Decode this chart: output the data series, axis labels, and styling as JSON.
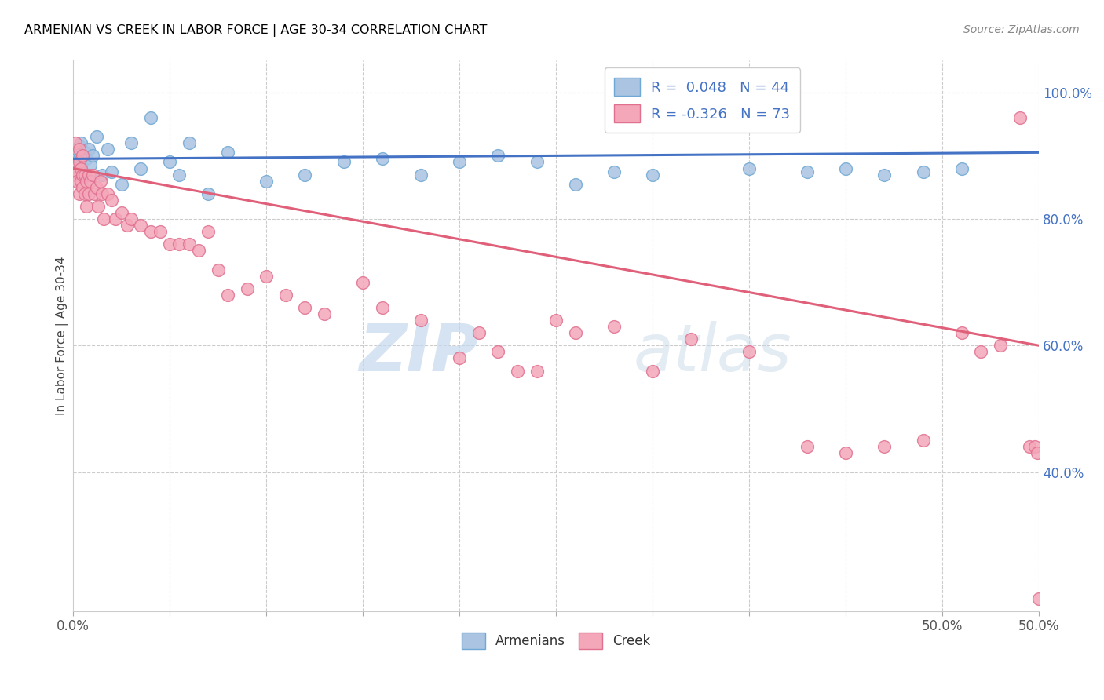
{
  "title": "ARMENIAN VS CREEK IN LABOR FORCE | AGE 30-34 CORRELATION CHART",
  "source": "Source: ZipAtlas.com",
  "ylabel": "In Labor Force | Age 30-34",
  "xlim": [
    0.0,
    0.5
  ],
  "ylim": [
    0.18,
    1.05
  ],
  "xticks": [
    0.0,
    0.05,
    0.1,
    0.15,
    0.2,
    0.25,
    0.3,
    0.35,
    0.4,
    0.45,
    0.5
  ],
  "xticklabels_show": {
    "0.0": "0.0%",
    "0.5": "50.0%"
  },
  "yticks_right": [
    0.4,
    0.6,
    0.8,
    1.0
  ],
  "yticklabels_right": [
    "40.0%",
    "60.0%",
    "80.0%",
    "100.0%"
  ],
  "armenian_color": "#aac4e2",
  "armenian_edge": "#6fa8d4",
  "creek_color": "#f4a7b9",
  "creek_edge": "#e07090",
  "line_armenian": "#4472c4",
  "line_creek": "#e0607a",
  "legend_r_armenian": "R =  0.048",
  "legend_n_armenian": "N = 44",
  "legend_r_creek": "R = -0.326",
  "legend_n_creek": "N = 73",
  "legend_color": "#4472c4",
  "watermark_zip": "ZIP",
  "watermark_atlas": "atlas",
  "armenian_x": [
    0.001,
    0.002,
    0.002,
    0.003,
    0.003,
    0.004,
    0.004,
    0.005,
    0.005,
    0.006,
    0.007,
    0.008,
    0.009,
    0.01,
    0.012,
    0.015,
    0.018,
    0.02,
    0.025,
    0.03,
    0.035,
    0.04,
    0.05,
    0.055,
    0.06,
    0.07,
    0.08,
    0.1,
    0.12,
    0.14,
    0.16,
    0.18,
    0.2,
    0.22,
    0.24,
    0.26,
    0.28,
    0.3,
    0.35,
    0.38,
    0.4,
    0.42,
    0.44,
    0.46
  ],
  "armenian_y": [
    0.905,
    0.91,
    0.875,
    0.915,
    0.895,
    0.885,
    0.92,
    0.9,
    0.87,
    0.905,
    0.895,
    0.91,
    0.885,
    0.9,
    0.93,
    0.87,
    0.91,
    0.875,
    0.855,
    0.92,
    0.88,
    0.96,
    0.89,
    0.87,
    0.92,
    0.84,
    0.905,
    0.86,
    0.87,
    0.89,
    0.895,
    0.87,
    0.89,
    0.9,
    0.89,
    0.855,
    0.875,
    0.87,
    0.88,
    0.875,
    0.88,
    0.87,
    0.875,
    0.88
  ],
  "creek_x": [
    0.001,
    0.001,
    0.002,
    0.002,
    0.003,
    0.003,
    0.003,
    0.004,
    0.004,
    0.005,
    0.005,
    0.005,
    0.006,
    0.006,
    0.007,
    0.007,
    0.008,
    0.008,
    0.009,
    0.01,
    0.011,
    0.012,
    0.013,
    0.014,
    0.015,
    0.016,
    0.018,
    0.02,
    0.022,
    0.025,
    0.028,
    0.03,
    0.035,
    0.04,
    0.045,
    0.05,
    0.055,
    0.06,
    0.065,
    0.07,
    0.075,
    0.08,
    0.09,
    0.1,
    0.11,
    0.12,
    0.13,
    0.15,
    0.16,
    0.18,
    0.2,
    0.21,
    0.22,
    0.23,
    0.24,
    0.25,
    0.26,
    0.28,
    0.3,
    0.32,
    0.35,
    0.38,
    0.4,
    0.42,
    0.44,
    0.46,
    0.47,
    0.48,
    0.49,
    0.495,
    0.498,
    0.499,
    0.5
  ],
  "creek_y": [
    0.87,
    0.92,
    0.875,
    0.86,
    0.89,
    0.84,
    0.91,
    0.86,
    0.88,
    0.87,
    0.85,
    0.9,
    0.84,
    0.87,
    0.86,
    0.82,
    0.87,
    0.84,
    0.86,
    0.87,
    0.84,
    0.85,
    0.82,
    0.86,
    0.84,
    0.8,
    0.84,
    0.83,
    0.8,
    0.81,
    0.79,
    0.8,
    0.79,
    0.78,
    0.78,
    0.76,
    0.76,
    0.76,
    0.75,
    0.78,
    0.72,
    0.68,
    0.69,
    0.71,
    0.68,
    0.66,
    0.65,
    0.7,
    0.66,
    0.64,
    0.58,
    0.62,
    0.59,
    0.56,
    0.56,
    0.64,
    0.62,
    0.63,
    0.56,
    0.61,
    0.59,
    0.44,
    0.43,
    0.44,
    0.45,
    0.62,
    0.59,
    0.6,
    0.96,
    0.44,
    0.44,
    0.43,
    0.2
  ]
}
